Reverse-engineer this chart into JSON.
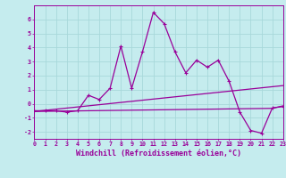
{
  "x": [
    0,
    1,
    2,
    3,
    4,
    5,
    6,
    7,
    8,
    9,
    10,
    11,
    12,
    13,
    14,
    15,
    16,
    17,
    18,
    19,
    20,
    21,
    22,
    23
  ],
  "y_main": [
    -0.5,
    -0.5,
    -0.5,
    -0.6,
    -0.5,
    0.6,
    0.3,
    1.1,
    4.1,
    1.1,
    3.7,
    6.5,
    5.7,
    3.7,
    2.2,
    3.1,
    2.6,
    3.1,
    1.6,
    -0.6,
    -1.9,
    -2.1,
    -0.3,
    -0.2
  ],
  "y_line1": [
    -0.55,
    -0.47,
    -0.39,
    -0.31,
    -0.23,
    -0.15,
    -0.07,
    0.01,
    0.09,
    0.17,
    0.25,
    0.33,
    0.41,
    0.49,
    0.57,
    0.65,
    0.73,
    0.81,
    0.89,
    0.97,
    1.05,
    1.13,
    1.21,
    1.29
  ],
  "y_line2": [
    -0.55,
    -0.54,
    -0.53,
    -0.52,
    -0.51,
    -0.5,
    -0.49,
    -0.48,
    -0.47,
    -0.46,
    -0.45,
    -0.44,
    -0.43,
    -0.42,
    -0.41,
    -0.4,
    -0.39,
    -0.38,
    -0.37,
    -0.36,
    -0.35,
    -0.34,
    -0.33,
    -0.15
  ],
  "xlim": [
    0,
    23
  ],
  "ylim": [
    -2.5,
    7.0
  ],
  "yticks": [
    -2,
    -1,
    0,
    1,
    2,
    3,
    4,
    5,
    6
  ],
  "xticks": [
    0,
    1,
    2,
    3,
    4,
    5,
    6,
    7,
    8,
    9,
    10,
    11,
    12,
    13,
    14,
    15,
    16,
    17,
    18,
    19,
    20,
    21,
    22,
    23
  ],
  "xlabel": "Windchill (Refroidissement éolien,°C)",
  "bg_color": "#c5ecee",
  "line_color": "#990099",
  "grid_color": "#a8d8da",
  "tick_fontsize": 4.8,
  "label_fontsize": 6.0
}
